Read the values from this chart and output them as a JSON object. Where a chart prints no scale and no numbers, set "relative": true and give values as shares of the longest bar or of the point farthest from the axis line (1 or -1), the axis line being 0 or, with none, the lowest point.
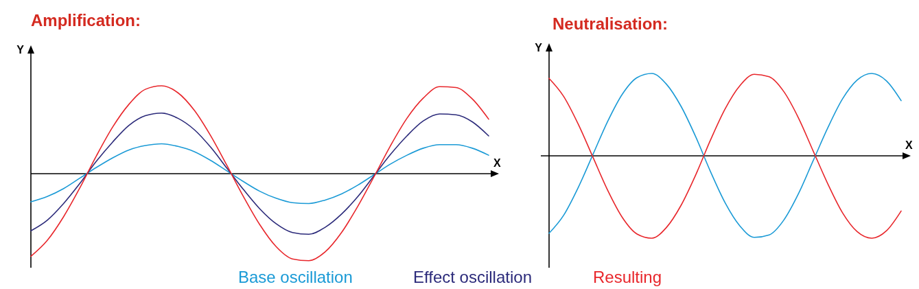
{
  "chart_data": [
    {
      "type": "line",
      "title": "Amplification:",
      "xlabel": "X",
      "ylabel": "Y",
      "relative": true,
      "legend": "bottom",
      "categories": [
        null,
        null,
        null,
        null,
        null,
        null,
        null,
        null,
        null,
        null,
        null,
        null,
        null,
        null,
        null,
        null,
        null,
        null,
        null,
        null,
        null,
        null,
        null,
        null,
        null,
        null,
        null,
        null,
        null
      ],
      "series": [
        {
          "name": "Base oscillation",
          "color": "#1a9ad6",
          "values": [
            -0.32,
            -0.26,
            -0.17,
            -0.05,
            0.07,
            0.18,
            0.27,
            0.32,
            0.34,
            0.31,
            0.25,
            0.15,
            0.03,
            -0.09,
            -0.2,
            -0.28,
            -0.33,
            -0.34,
            -0.3,
            -0.23,
            -0.13,
            -0.01,
            0.11,
            0.21,
            0.29,
            0.33,
            0.33,
            0.29,
            0.21
          ]
        },
        {
          "name": "Effect oscillation",
          "color": "#2b2a7a",
          "values": [
            -0.65,
            -0.53,
            -0.34,
            -0.11,
            0.14,
            0.36,
            0.55,
            0.66,
            0.69,
            0.63,
            0.5,
            0.3,
            0.06,
            -0.18,
            -0.4,
            -0.57,
            -0.67,
            -0.69,
            -0.61,
            -0.46,
            -0.26,
            -0.02,
            0.22,
            0.43,
            0.6,
            0.68,
            0.67,
            0.59,
            0.43
          ]
        },
        {
          "name": "Resulting",
          "color": "#e8262b",
          "values": [
            -0.94,
            -0.76,
            -0.49,
            -0.16,
            0.2,
            0.53,
            0.79,
            0.96,
            1,
            0.92,
            0.72,
            0.43,
            0.09,
            -0.26,
            -0.58,
            -0.83,
            -0.97,
            -0.99,
            -0.89,
            -0.67,
            -0.37,
            -0.03,
            0.32,
            0.63,
            0.86,
            0.99,
            0.98,
            0.85,
            0.62
          ]
        }
      ]
    },
    {
      "type": "line",
      "title": "Neutralisation:",
      "xlabel": "X",
      "ylabel": "Y",
      "relative": true,
      "categories": [
        null,
        null,
        null,
        null,
        null,
        null,
        null,
        null,
        null,
        null,
        null,
        null,
        null,
        null,
        null,
        null,
        null,
        null,
        null,
        null,
        null,
        null,
        null,
        null,
        null
      ],
      "series": [
        {
          "color": "#1a9ad6",
          "values": [
            -0.94,
            -0.72,
            -0.38,
            0.02,
            0.42,
            0.75,
            0.95,
            1,
            0.87,
            0.6,
            0.23,
            -0.19,
            -0.57,
            -0.85,
            -0.99,
            -0.96,
            -0.78,
            -0.46,
            -0.06,
            0.34,
            0.69,
            0.92,
            1,
            0.91,
            0.67
          ]
        },
        {
          "color": "#e8262b",
          "values": [
            0.94,
            0.72,
            0.38,
            -0.02,
            -0.42,
            -0.75,
            -0.95,
            -1,
            -0.87,
            -0.6,
            -0.23,
            0.19,
            0.57,
            0.85,
            0.99,
            0.96,
            0.78,
            0.46,
            0.06,
            -0.34,
            -0.69,
            -0.92,
            -1,
            -0.91,
            -0.67
          ]
        }
      ]
    }
  ]
}
